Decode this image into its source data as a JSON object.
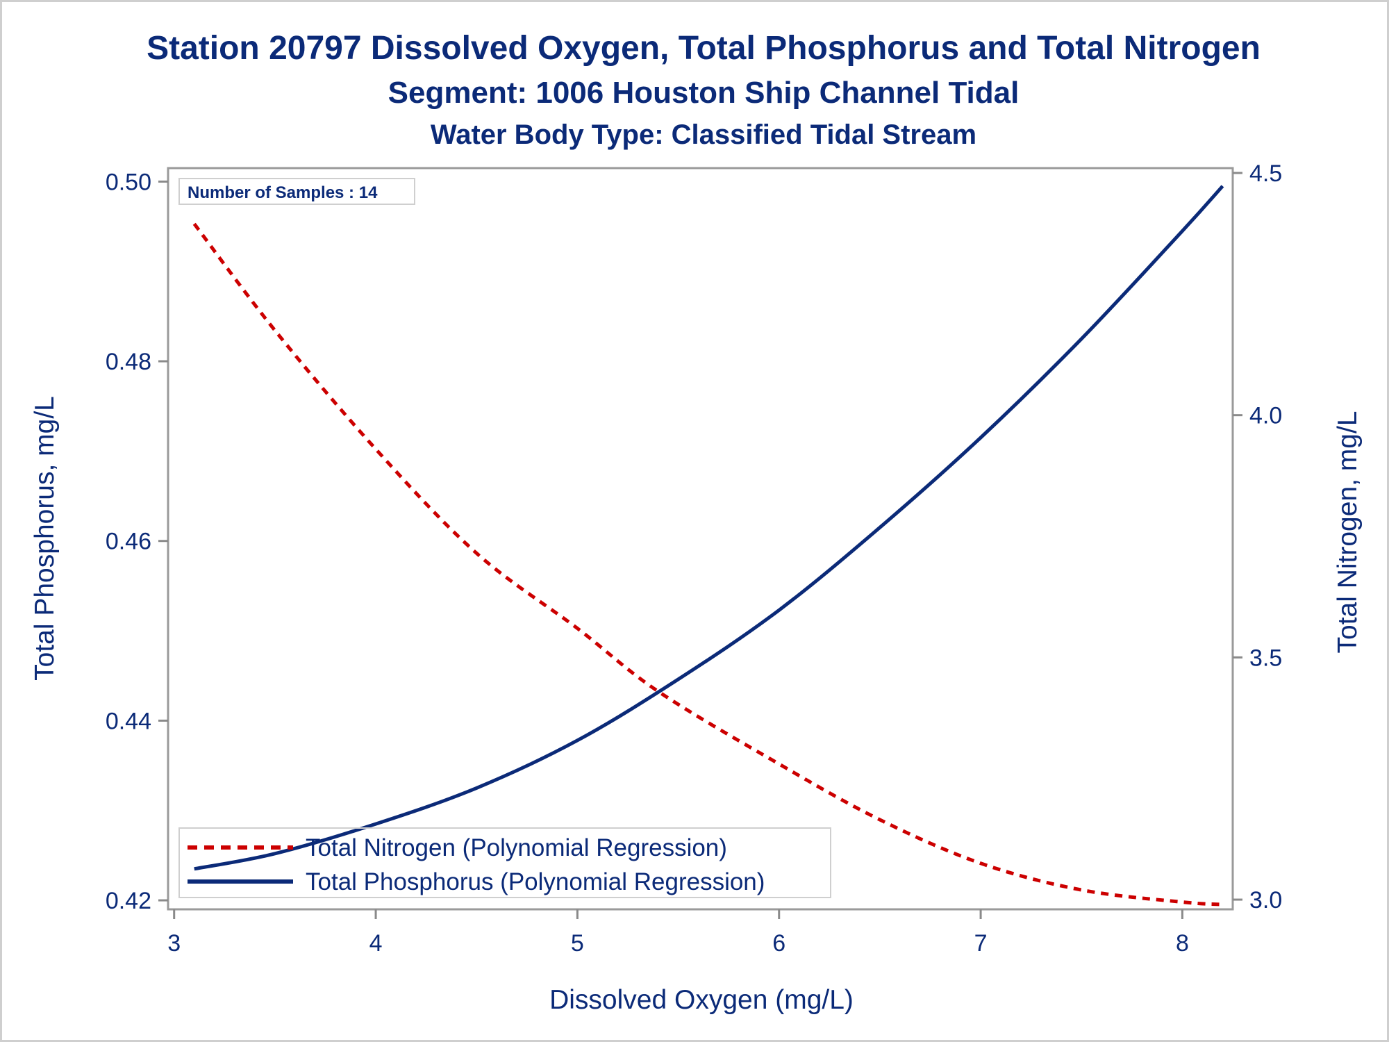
{
  "colors": {
    "text": "#0b2a78",
    "frame": "#9a9a9a",
    "tick": "#8a8a8a",
    "nitrogen": "#cc0000",
    "phosphorus": "#0b2a78",
    "border": "#cfcfcf"
  },
  "chart_data": {
    "type": "line",
    "title": "Station 20797  Dissolved Oxygen, Total Phosphorus and Total Nitrogen",
    "subtitle": "Segment: 1006  Houston Ship Channel Tidal",
    "subtitle2": "Water Body Type: Classified Tidal Stream",
    "xlabel": "Dissolved Oxygen (mg/L)",
    "ylabel_left": "Total Phosphorus, mg/L",
    "ylabel_right": "Total Nitrogen, mg/L",
    "xlim": [
      2.97,
      8.25
    ],
    "ylim_left": [
      0.419,
      0.5015
    ],
    "ylim_right": [
      2.98,
      4.51
    ],
    "x_ticks": [
      3,
      4,
      5,
      6,
      7,
      8
    ],
    "x_tick_labels": [
      "3",
      "4",
      "5",
      "6",
      "7",
      "8"
    ],
    "y_left_ticks": [
      0.42,
      0.44,
      0.46,
      0.48,
      0.5
    ],
    "y_left_tick_labels": [
      "0.42",
      "0.44",
      "0.46",
      "0.48",
      "0.50"
    ],
    "y_right_ticks": [
      3.0,
      3.5,
      4.0,
      4.5
    ],
    "y_right_tick_labels": [
      "3.0",
      "3.5",
      "4.0",
      "4.5"
    ],
    "grid": false,
    "legend_position": "bottom-left",
    "inset_label": "Number of Samples : 14",
    "series": [
      {
        "name": "Total Nitrogen (Polynomial Regression)",
        "axis": "right",
        "style": "dashed",
        "color": "#cc0000",
        "x": [
          3.1,
          3.5,
          4.0,
          4.5,
          5.0,
          5.4,
          6.0,
          6.5,
          7.0,
          7.5,
          8.0,
          8.2
        ],
        "y": [
          4.395,
          4.175,
          3.93,
          3.715,
          3.56,
          3.43,
          3.28,
          3.165,
          3.075,
          3.02,
          2.995,
          2.99
        ]
      },
      {
        "name": "Total Phosphorus (Polynomial Regression)",
        "axis": "left",
        "style": "solid",
        "color": "#0b2a78",
        "x": [
          3.1,
          3.5,
          4.0,
          4.5,
          5.0,
          5.5,
          6.0,
          6.5,
          7.0,
          7.5,
          8.0,
          8.2
        ],
        "y": [
          0.4235,
          0.4252,
          0.4285,
          0.4325,
          0.4378,
          0.4446,
          0.4523,
          0.4615,
          0.4715,
          0.4825,
          0.4945,
          0.4995
        ]
      }
    ]
  }
}
